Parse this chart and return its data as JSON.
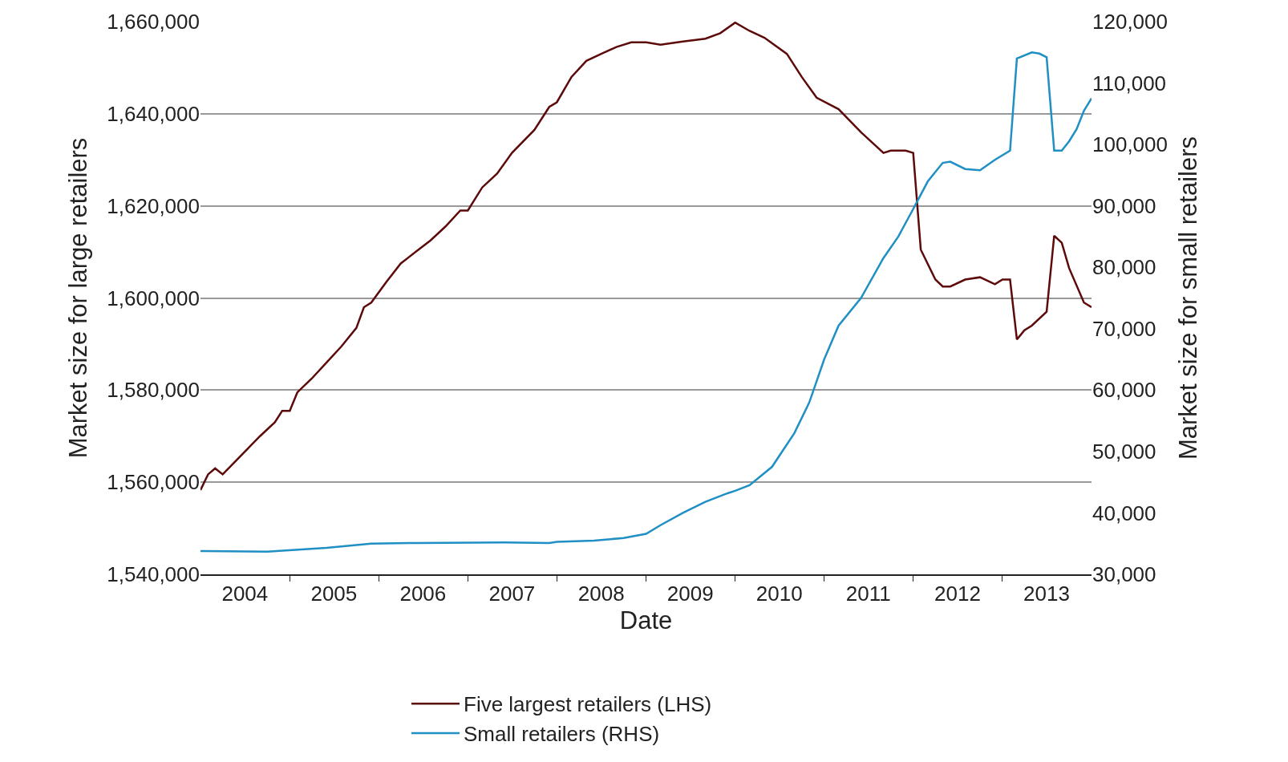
{
  "chart_data": {
    "type": "line",
    "xlabel": "Date",
    "ylabel": "Market size for large retailers",
    "y2label": "Market size for small retailers",
    "xlim": [
      "2004-01",
      "2014-01"
    ],
    "xticks": [
      {
        "value": "2004-07",
        "label": "2004"
      },
      {
        "value": "2005-07",
        "label": "2005"
      },
      {
        "value": "2006-07",
        "label": "2006"
      },
      {
        "value": "2007-07",
        "label": "2007"
      },
      {
        "value": "2008-07",
        "label": "2008"
      },
      {
        "value": "2009-07",
        "label": "2009"
      },
      {
        "value": "2010-07",
        "label": "2010"
      },
      {
        "value": "2011-07",
        "label": "2011"
      },
      {
        "value": "2012-07",
        "label": "2012"
      },
      {
        "value": "2013-07",
        "label": "2013"
      },
      {
        "value": "2005-01",
        "label": null
      },
      {
        "value": "2006-01",
        "label": null
      },
      {
        "value": "2007-01",
        "label": null
      },
      {
        "value": "2008-01",
        "label": null
      },
      {
        "value": "2009-01",
        "label": null
      },
      {
        "value": "2010-01",
        "label": null
      },
      {
        "value": "2011-01",
        "label": null
      },
      {
        "value": "2012-01",
        "label": null
      },
      {
        "value": "2013-01",
        "label": null
      }
    ],
    "ylim": [
      1540000,
      1660000
    ],
    "yticks": [
      {
        "value": 1540000,
        "label": "1,540,000"
      },
      {
        "value": 1560000,
        "label": "1,560,000"
      },
      {
        "value": 1580000,
        "label": "1,580,000"
      },
      {
        "value": 1600000,
        "label": "1,600,000"
      },
      {
        "value": 1620000,
        "label": "1,620,000"
      },
      {
        "value": 1640000,
        "label": "1,640,000"
      },
      {
        "value": 1660000,
        "label": "1,660,000"
      }
    ],
    "y2lim": [
      30000,
      120000
    ],
    "y2ticks": [
      {
        "value": 30000,
        "label": "30,000"
      },
      {
        "value": 40000,
        "label": "40,000"
      },
      {
        "value": 50000,
        "label": "50,000"
      },
      {
        "value": 60000,
        "label": "60,000"
      },
      {
        "value": 70000,
        "label": "70,000"
      },
      {
        "value": 80000,
        "label": "80,000"
      },
      {
        "value": 90000,
        "label": "90,000"
      },
      {
        "value": 100000,
        "label": "100,000"
      },
      {
        "value": 110000,
        "label": "110,000"
      },
      {
        "value": 120000,
        "label": "120,000"
      }
    ],
    "grid": "y",
    "legend": "bottom",
    "line_style": "solid",
    "marker": "none",
    "series": [
      {
        "name": "Five largest retailers (LHS)",
        "color": "#5c0a0a",
        "axis": "y",
        "x": [
          "2004-01",
          "2004-02",
          "2004-03",
          "2004-04",
          "2004-06",
          "2004-09",
          "2004-11",
          "2004-12",
          "2005-01",
          "2005-02",
          "2005-04",
          "2005-06",
          "2005-08",
          "2005-10",
          "2005-11",
          "2005-12",
          "2006-02",
          "2006-04",
          "2006-06",
          "2006-08",
          "2006-10",
          "2006-12",
          "2007-01",
          "2007-03",
          "2007-05",
          "2007-07",
          "2007-10",
          "2007-12",
          "2008-01",
          "2008-03",
          "2008-05",
          "2008-07",
          "2008-09",
          "2008-11",
          "2009-01",
          "2009-03",
          "2009-06",
          "2009-09",
          "2009-11",
          "2010-01",
          "2010-03",
          "2010-05",
          "2010-08",
          "2010-10",
          "2010-12",
          "2011-03",
          "2011-06",
          "2011-09",
          "2011-10",
          "2011-12",
          "2012-01",
          "2012-02",
          "2012-04",
          "2012-05",
          "2012-06",
          "2012-08",
          "2012-10",
          "2012-12",
          "2013-01",
          "2013-02",
          "2013-03",
          "2013-04",
          "2013-05",
          "2013-07",
          "2013-08",
          "2013-09",
          "2013-10",
          "2013-12",
          "2014-01"
        ],
        "values": [
          1558300,
          1561700,
          1563000,
          1561700,
          1565000,
          1570000,
          1573000,
          1575500,
          1575500,
          1579500,
          1582500,
          1586000,
          1589500,
          1593500,
          1598000,
          1599000,
          1603500,
          1607500,
          1610000,
          1612500,
          1615500,
          1619000,
          1619000,
          1624000,
          1627000,
          1631500,
          1636500,
          1641500,
          1642500,
          1648000,
          1651500,
          1653000,
          1654500,
          1655500,
          1655500,
          1655000,
          1655700,
          1656300,
          1657500,
          1659800,
          1658000,
          1656500,
          1653000,
          1648000,
          1643500,
          1641000,
          1636000,
          1631500,
          1632000,
          1632000,
          1631500,
          1610500,
          1604000,
          1602500,
          1602500,
          1604000,
          1604500,
          1603000,
          1604000,
          1604000,
          1591000,
          1593000,
          1594000,
          1597000,
          1613500,
          1612000,
          1606500,
          1599000,
          1598000
        ]
      },
      {
        "name": "Small retailers (RHS)",
        "color": "#1f8fc4",
        "axis": "y2",
        "x": [
          "2004-01",
          "2004-10",
          "2005-06",
          "2005-12",
          "2006-06",
          "2007-06",
          "2007-12",
          "2008-01",
          "2008-06",
          "2008-10",
          "2009-01",
          "2009-03",
          "2009-06",
          "2009-09",
          "2009-12",
          "2010-01",
          "2010-03",
          "2010-06",
          "2010-09",
          "2010-11",
          "2011-01",
          "2011-03",
          "2011-06",
          "2011-09",
          "2011-11",
          "2012-01",
          "2012-03",
          "2012-05",
          "2012-06",
          "2012-08",
          "2012-10",
          "2012-12",
          "2013-02",
          "2013-03",
          "2013-05",
          "2013-06",
          "2013-07",
          "2013-08",
          "2013-09",
          "2013-10",
          "2013-11",
          "2013-12",
          "2014-01"
        ],
        "values": [
          33800,
          33700,
          34300,
          35000,
          35100,
          35200,
          35100,
          35300,
          35500,
          35900,
          36600,
          38000,
          40000,
          41800,
          43200,
          43600,
          44500,
          47500,
          53000,
          58000,
          65000,
          70500,
          75000,
          81500,
          85000,
          89500,
          94000,
          97000,
          97200,
          96000,
          95800,
          97500,
          99000,
          114000,
          115000,
          114800,
          114200,
          99000,
          99000,
          100500,
          102500,
          105500,
          107500
        ]
      }
    ]
  }
}
